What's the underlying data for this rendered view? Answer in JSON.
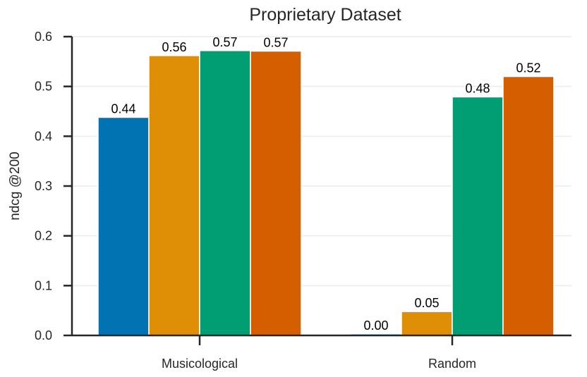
{
  "chart_data": {
    "type": "bar",
    "title": "Proprietary Dataset",
    "xlabel": "",
    "ylabel": "ndcg @200",
    "categories": [
      "Musicological",
      "Random"
    ],
    "ylim": [
      0,
      0.6
    ],
    "yticks": [
      "0.0",
      "0.1",
      "0.2",
      "0.3",
      "0.4",
      "0.5",
      "0.6"
    ],
    "grid": true,
    "legend": "none",
    "series": [
      {
        "color": "#0173b2",
        "values": [
          0.438,
          0.003
        ],
        "labels": [
          "0.44",
          "0.00"
        ]
      },
      {
        "color": "#de8f05",
        "values": [
          0.562,
          0.048
        ],
        "labels": [
          "0.56",
          "0.05"
        ]
      },
      {
        "color": "#029e73",
        "values": [
          0.572,
          0.479
        ],
        "labels": [
          "0.57",
          "0.48"
        ]
      },
      {
        "color": "#d55e00",
        "values": [
          0.571,
          0.52
        ],
        "labels": [
          "0.57",
          "0.52"
        ]
      }
    ]
  }
}
